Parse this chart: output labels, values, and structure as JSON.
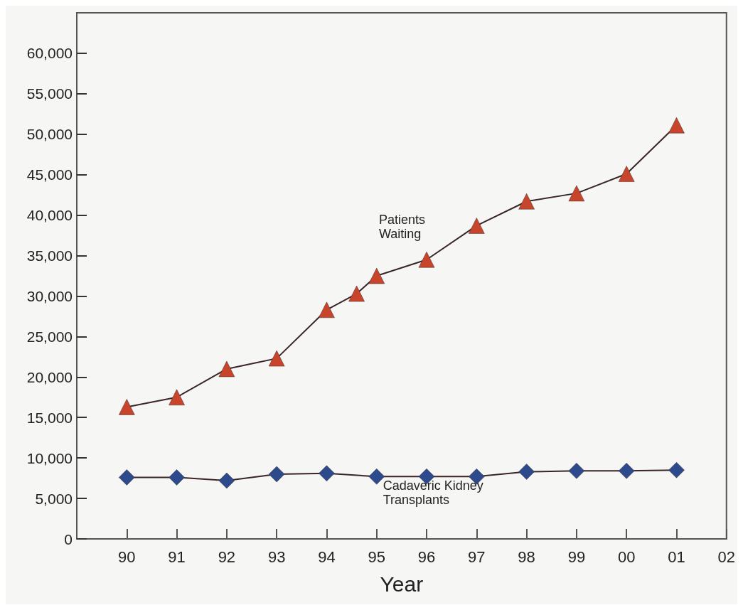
{
  "chart_data": {
    "type": "line",
    "xlabel": "Year",
    "series": [
      {
        "name": "Patients Waiting",
        "color": "#c8442a",
        "marker": "triangle",
        "x": [
          1990,
          1991,
          1992,
          1993,
          1994,
          1994.6,
          1995,
          1996,
          1997,
          1998,
          1999,
          2000,
          2001
        ],
        "values": [
          16300,
          17500,
          21000,
          22300,
          28300,
          30300,
          32500,
          34500,
          38700,
          41700,
          42700,
          45100,
          51100
        ]
      },
      {
        "name": "Cadaveric Kidney Transplants",
        "color": "#2c4a8c",
        "marker": "diamond",
        "x": [
          1990,
          1991,
          1992,
          1993,
          1994,
          1995,
          1996,
          1997,
          1998,
          1999,
          2000,
          2001
        ],
        "values": [
          7600,
          7600,
          7200,
          8000,
          8100,
          7700,
          7700,
          7700,
          8300,
          8400,
          8400,
          8500
        ]
      }
    ],
    "xlim": [
      1989,
      2002
    ],
    "xticks": [
      {
        "value": 1990,
        "label": "90"
      },
      {
        "value": 1991,
        "label": "91"
      },
      {
        "value": 1992,
        "label": "92"
      },
      {
        "value": 1993,
        "label": "93"
      },
      {
        "value": 1994,
        "label": "94"
      },
      {
        "value": 1995,
        "label": "95"
      },
      {
        "value": 1996,
        "label": "96"
      },
      {
        "value": 1997,
        "label": "97"
      },
      {
        "value": 1998,
        "label": "98"
      },
      {
        "value": 1999,
        "label": "99"
      },
      {
        "value": 2000,
        "label": "00"
      },
      {
        "value": 2001,
        "label": "01"
      },
      {
        "value": 2002,
        "label": "02"
      }
    ],
    "ylim": [
      0,
      65000
    ],
    "yticks": [
      0,
      {
        "value": 5000,
        "label": "5,000"
      },
      {
        "value": 10000,
        "label": "10,000"
      },
      {
        "value": 15000,
        "label": "15,000"
      },
      {
        "value": 20000,
        "label": "20,000"
      },
      {
        "value": 25000,
        "label": "25,000"
      },
      {
        "value": 30000,
        "label": "30,000"
      },
      {
        "value": 35000,
        "label": "35,000"
      },
      {
        "value": 40000,
        "label": "40,000"
      },
      {
        "value": 45000,
        "label": "45,000"
      },
      {
        "value": 50000,
        "label": "50,000"
      },
      {
        "value": 55000,
        "label": "55,000"
      },
      {
        "value": 60000,
        "label": "60,000"
      }
    ],
    "grid": false,
    "legend": false,
    "line_style": "solid"
  }
}
